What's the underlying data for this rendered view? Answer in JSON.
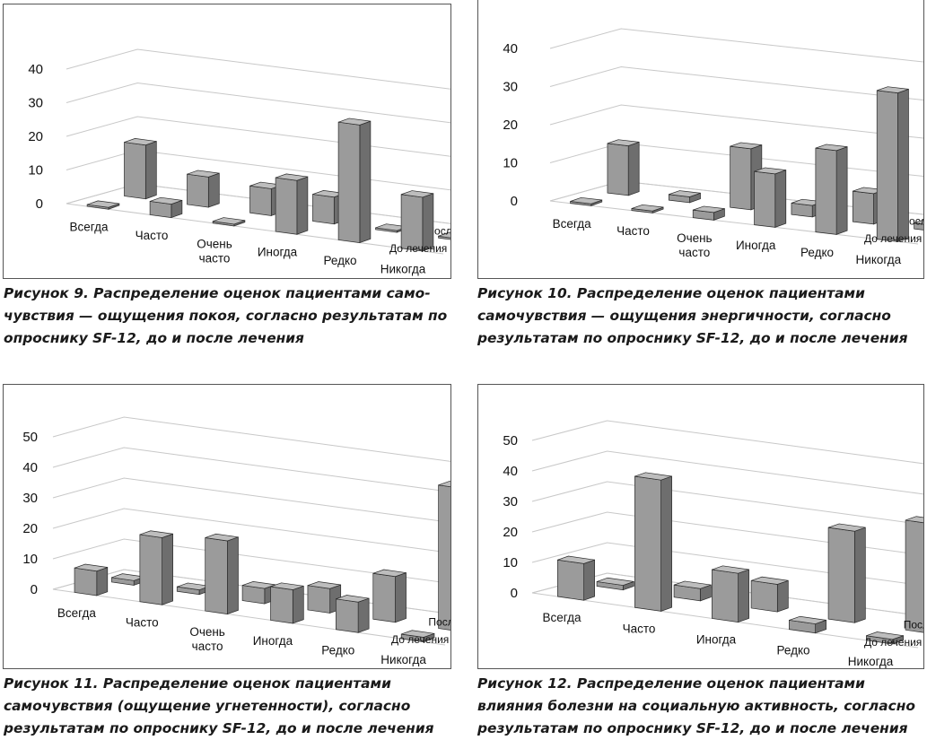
{
  "colors": {
    "front": "#9b9b9b",
    "side": "#6e6e6e",
    "top": "#bdbdbd",
    "edge": "#2a2a2a",
    "grid": "#c8c8c8"
  },
  "chart_data": [
    {
      "type": "bar3d",
      "figure_label": "Рисунок 9.",
      "caption": "Распределение оценок пациентами самочувствия — ощущения покоя, согласно результатам по опроснику SF-12, до и после лечения",
      "caption_lines": [
        "Распределение оценок пациентами само-",
        "чувствия — ощущения покоя, согласно результатам по",
        "опроснику SF-12, до и после лечения"
      ],
      "categories": [
        "Всегда",
        "Часто",
        "Очень\nчасто",
        "Иногда",
        "Редко",
        "Никогда"
      ],
      "yticks": [
        "0",
        "10",
        "20",
        "30",
        "40"
      ],
      "ylim": [
        0,
        40
      ],
      "series": [
        {
          "name": "После",
          "values": [
            16,
            9,
            8,
            8,
            0.5,
            0.5
          ]
        },
        {
          "name": "До лечения",
          "values": [
            0.5,
            4,
            0.5,
            16,
            35,
            16
          ]
        }
      ]
    },
    {
      "type": "bar3d",
      "figure_label": "Рисунок 10.",
      "caption": "Распределение оценок пациентами самочувствия — ощущения энергичности, согласно результатам по опроснику SF-12, до и после лечения",
      "caption_lines": [
        "Распределение оценок пациентами",
        "самочувствия — ощущения энергичности, согласно",
        "результатам по опроснику SF-12, до и после лечения"
      ],
      "categories": [
        "Всегда",
        "Часто",
        "Очень\nчасто",
        "Иногда",
        "Редко",
        "Никогда"
      ],
      "yticks": [
        "0",
        "10",
        "20",
        "30",
        "40"
      ],
      "ylim": [
        0,
        40
      ],
      "series": [
        {
          "name": "После",
          "values": [
            13,
            1.5,
            16,
            3,
            8,
            1.5
          ]
        },
        {
          "name": "До лечения",
          "values": [
            0.5,
            0.5,
            2,
            14,
            22,
            39
          ]
        }
      ]
    },
    {
      "type": "bar3d",
      "figure_label": "Рисунок 11.",
      "caption": "Распределение оценок пациентами самочувствия (ощущение угнетенности), согласно результатам по опроснику SF-12, до и после лечения",
      "caption_lines": [
        "Распределение оценок пациентами",
        "самочувствия (ощущение угнетенности), согласно",
        "результатам по опроснику SF-12, до и после лечения"
      ],
      "categories": [
        "Всегда",
        "Часто",
        "Очень\nчасто",
        "Иногда",
        "Редко",
        "Никогда"
      ],
      "yticks": [
        "0",
        "10",
        "20",
        "30",
        "40",
        "50"
      ],
      "ylim": [
        0,
        50
      ],
      "series": [
        {
          "name": "После",
          "values": [
            1.5,
            1.5,
            5,
            8,
            15,
            47
          ]
        },
        {
          "name": "До лечения",
          "values": [
            8,
            22,
            24,
            11,
            10,
            1.5
          ]
        }
      ]
    },
    {
      "type": "bar3d",
      "figure_label": "Рисунок 12.",
      "caption": "Распределение оценок пациентами влияния болезни на социальную активность, согласно результатам по опроснику SF-12, до и после лечения",
      "caption_lines": [
        "Распределение оценок пациентами",
        "влияния болезни на социальную активность, согласно",
        "результатам по опроснику SF-12, до и после лечения"
      ],
      "categories": [
        "Всегда",
        "Часто",
        "Иногда",
        "Редко",
        "Никогда"
      ],
      "yticks": [
        "0",
        "10",
        "20",
        "30",
        "40",
        "50"
      ],
      "ylim": [
        0,
        50
      ],
      "series": [
        {
          "name": "После",
          "values": [
            1.5,
            4,
            9,
            30,
            36
          ]
        },
        {
          "name": "До лечения",
          "values": [
            12,
            43,
            16,
            3,
            1.5
          ]
        }
      ]
    }
  ]
}
